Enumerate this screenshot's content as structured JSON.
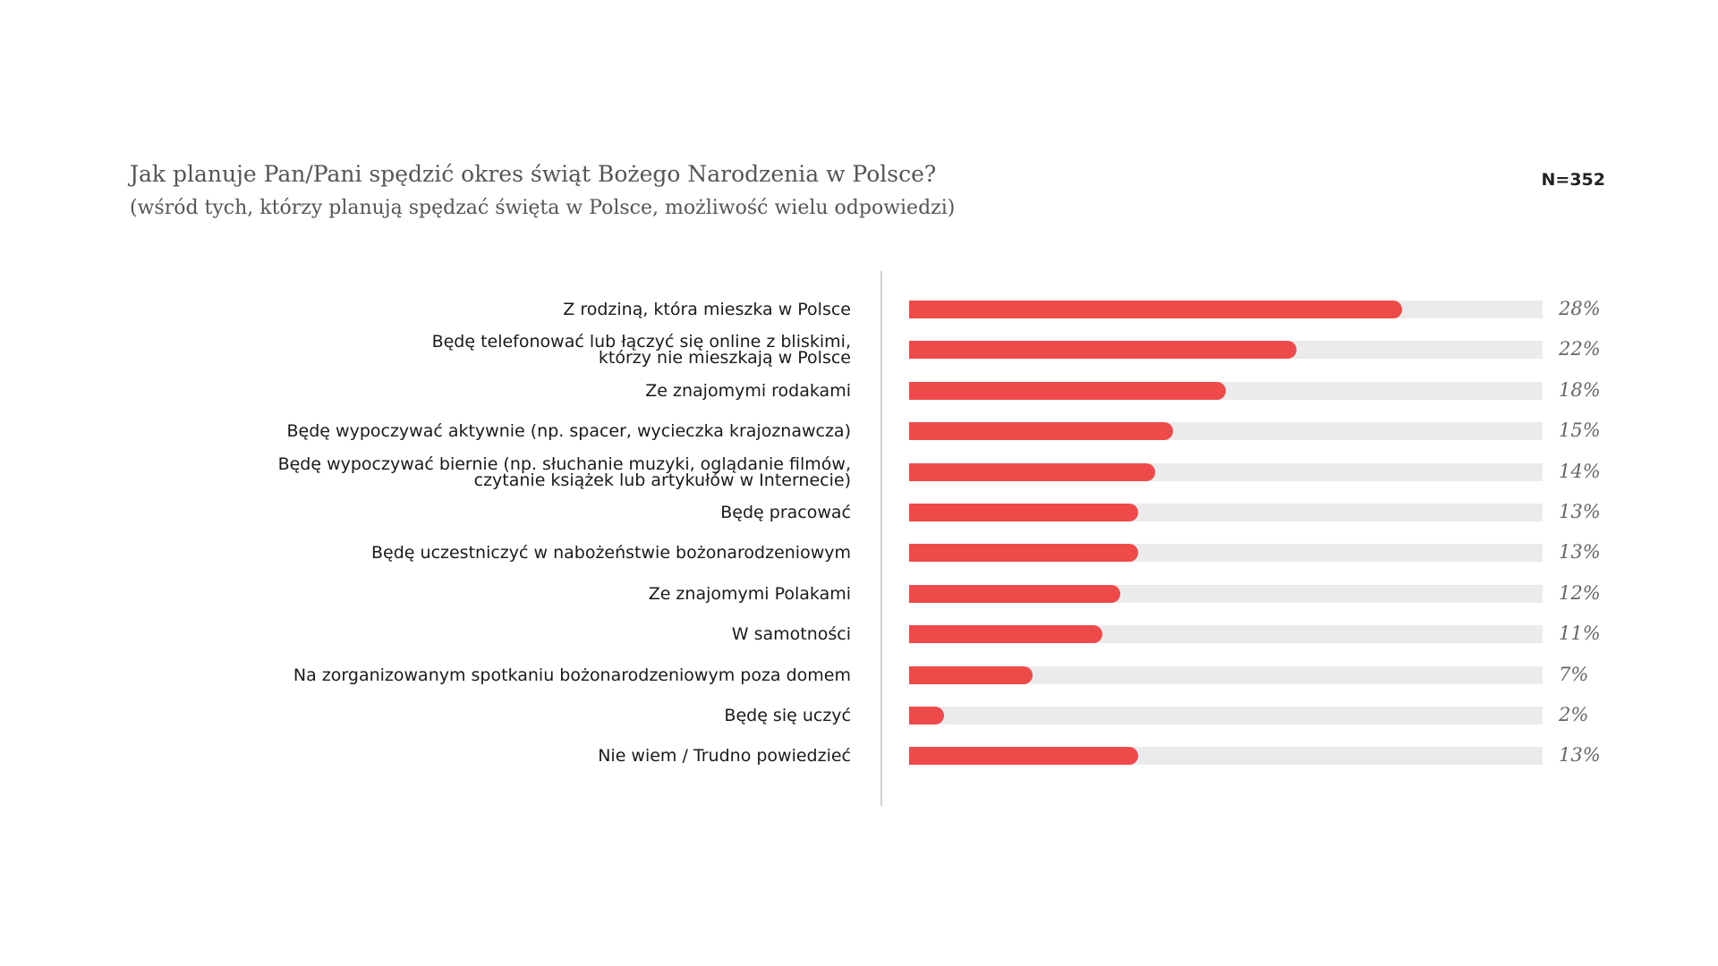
{
  "chart_data": {
    "type": "barh",
    "title": "Jak planuje Pan/Pani spędzić okres świąt Bożego Narodzenia w Polsce?",
    "subtitle": "(wśród tych, którzy planują spędzać święta w Polsce, możliwość wielu odpowiedzi)",
    "sample_size": "N=352",
    "categories": [
      "Z rodziną, która mieszka w Polsce",
      "Będę telefonować lub łączyć się online z bliskimi,\nktórzy nie mieszkają w Polsce",
      "Ze znajomymi rodakami",
      "Będę wypoczywać aktywnie (np. spacer, wycieczka krajoznawcza)",
      "Będę wypoczywać biernie (np. słuchanie muzyki, oglądanie filmów,\nczytanie książek lub artykułów w Internecie)",
      "Będę pracować",
      "Będę uczestniczyć w nabożeństwie bożonarodzeniowym",
      "Ze znajomymi Polakami",
      "W samotności",
      "Na zorganizowanym spotkaniu bożonarodzeniowym poza domem",
      "Będę się uczyć",
      "Nie wiem / Trudno powiedzieć"
    ],
    "values": [
      28,
      22,
      18,
      15,
      14,
      13,
      13,
      12,
      11,
      7,
      2,
      13
    ],
    "value_labels": [
      "28%",
      "22%",
      "18%",
      "15%",
      "14%",
      "13%",
      "13%",
      "12%",
      "11%",
      "7%",
      "2%",
      "13%"
    ],
    "color": "#ef4a4a",
    "track_color": "#ebebeb",
    "xlim": [
      0,
      36
    ]
  }
}
